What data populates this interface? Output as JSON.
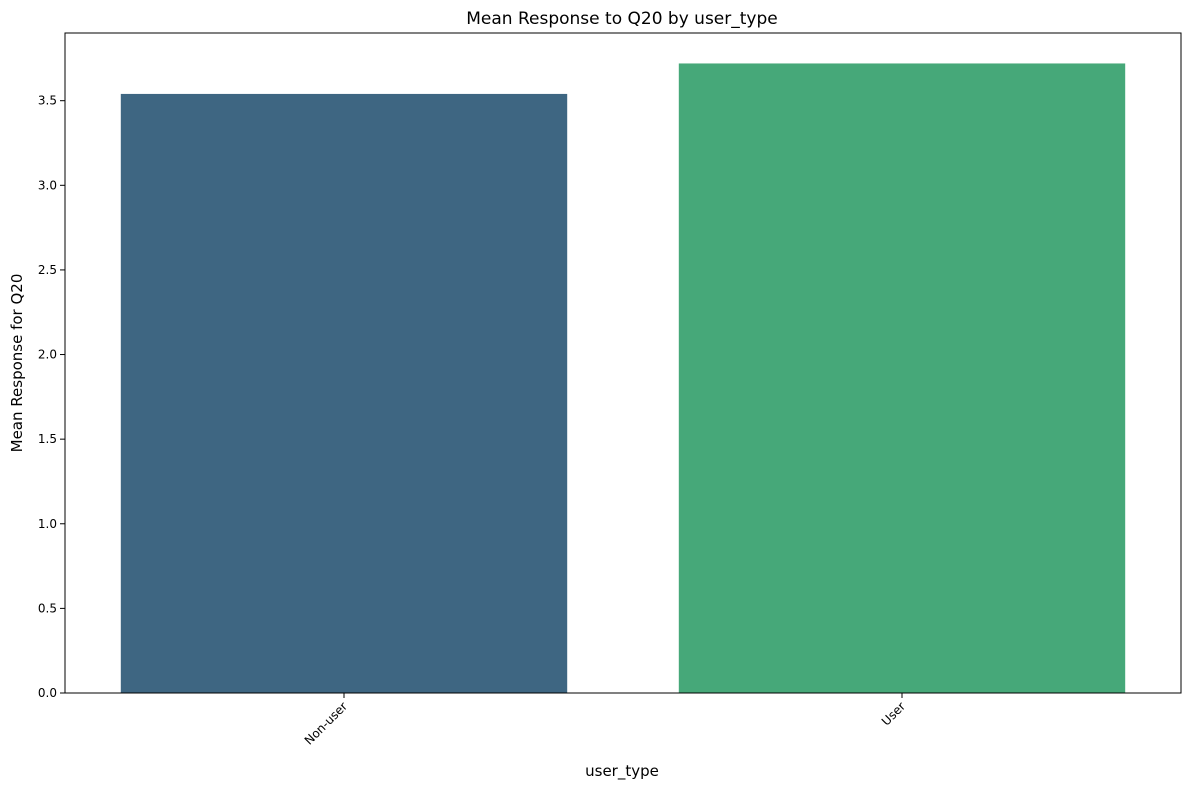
{
  "chart_data": {
    "type": "bar",
    "title": "Mean Response to Q20 by user_type",
    "xlabel": "user_type",
    "ylabel": "Mean Response for Q20",
    "categories": [
      "Non-user",
      "User"
    ],
    "values": [
      3.54,
      3.72
    ],
    "colors": [
      "#3e6682",
      "#46a879"
    ],
    "ylim": [
      0,
      3.9
    ],
    "yticks": [
      0.0,
      0.5,
      1.0,
      1.5,
      2.0,
      2.5,
      3.0,
      3.5
    ],
    "ytick_labels": [
      "0.0",
      "0.5",
      "1.0",
      "1.5",
      "2.0",
      "2.5",
      "3.0",
      "3.5"
    ],
    "grid": false,
    "legend": "none",
    "xtick_rotation": 45
  }
}
